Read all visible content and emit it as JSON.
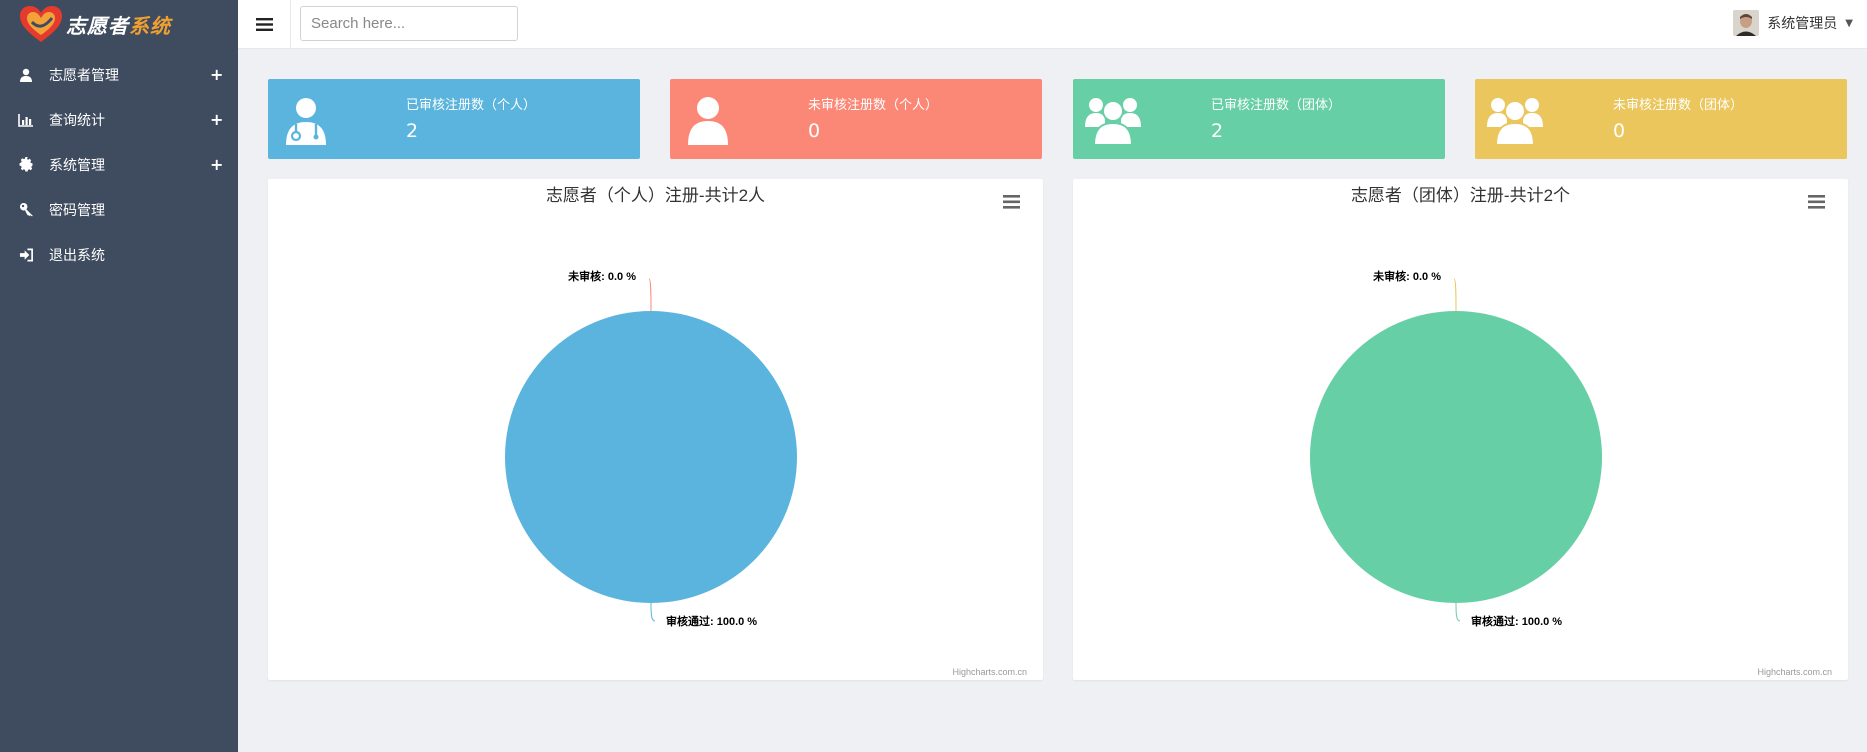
{
  "app": {
    "logo_text_a": "志愿者",
    "logo_text_b": "系统"
  },
  "sidebar": {
    "items": [
      {
        "label": "志愿者管理",
        "icon": "user-icon",
        "expandable": "+"
      },
      {
        "label": "查询统计",
        "icon": "bar-chart-icon",
        "expandable": "+"
      },
      {
        "label": "系统管理",
        "icon": "gear-icon",
        "expandable": "+"
      },
      {
        "label": "密码管理",
        "icon": "key-icon",
        "expandable": ""
      },
      {
        "label": "退出系统",
        "icon": "sign-out-icon",
        "expandable": ""
      }
    ]
  },
  "topbar": {
    "search_placeholder": "Search here...",
    "user_name": "系统管理员"
  },
  "stats": [
    {
      "title": "已审核注册数（个人）",
      "value": "2",
      "color": "#5ab4de",
      "icon": "user-doctor-icon"
    },
    {
      "title": "未审核注册数（个人）",
      "value": "0",
      "color": "#fb8877",
      "icon": "user-icon"
    },
    {
      "title": "已审核注册数（团体）",
      "value": "2",
      "color": "#67cfa5",
      "icon": "group-icon"
    },
    {
      "title": "未审核注册数（团体）",
      "value": "0",
      "color": "#eac65c",
      "icon": "group-icon"
    }
  ],
  "chart_data": [
    {
      "type": "pie",
      "title": "志愿者（个人）注册-共计2人",
      "slices": [
        {
          "name": "未审核",
          "value": 0.0,
          "label": "未审核: 0.0 %",
          "color": "#fb8877"
        },
        {
          "name": "审核通过",
          "value": 100.0,
          "label": "审核通过: 100.0 %",
          "color": "#5ab4de"
        }
      ],
      "credits": "Highcharts.com.cn"
    },
    {
      "type": "pie",
      "title": "志愿者（团体）注册-共计2个",
      "slices": [
        {
          "name": "未审核",
          "value": 0.0,
          "label": "未审核: 0.0 %",
          "color": "#eac65c"
        },
        {
          "name": "审核通过",
          "value": 100.0,
          "label": "审核通过: 100.0 %",
          "color": "#67cfa5"
        }
      ],
      "credits": "Highcharts.com.cn"
    }
  ]
}
